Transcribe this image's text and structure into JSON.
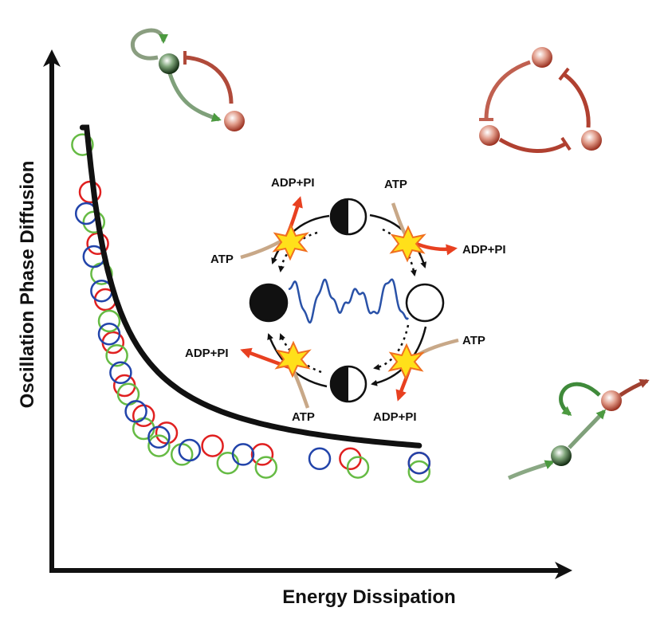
{
  "axes": {
    "x_label": "Energy Dissipation",
    "y_label": "Oscillation Phase Diffusion"
  },
  "cycle": {
    "labels": {
      "adp_top_left": "ADP+PI",
      "atp_top_right": "ATP",
      "atp_left": "ATP",
      "adp_right": "ADP+PI",
      "adp_left": "ADP+PI",
      "atp_lower_right": "ATP",
      "atp_bottom": "ATP",
      "adp_bottom": "ADP+PI"
    }
  },
  "colors": {
    "red": "#e02020",
    "green": "#66bb44",
    "blue": "#2244aa",
    "curve": "#111111",
    "trace": "#2a52a8",
    "star_fill": "#ffe01a",
    "star_stroke": "#f07020",
    "atp_arrow": "#c8a888",
    "adp_arrow": "#e84020"
  },
  "chart_data": {
    "type": "scatter",
    "series": [
      {
        "name": "",
        "color": "red",
        "points": [
          [
            0.1,
            0.85
          ],
          [
            0.12,
            0.73
          ],
          [
            0.14,
            0.6
          ],
          [
            0.16,
            0.5
          ],
          [
            0.19,
            0.4
          ],
          [
            0.24,
            0.33
          ],
          [
            0.3,
            0.29
          ],
          [
            0.42,
            0.26
          ],
          [
            0.55,
            0.24
          ],
          [
            0.78,
            0.23
          ],
          [
            0.96,
            0.22
          ]
        ]
      },
      {
        "name": "",
        "color": "green",
        "points": [
          [
            0.08,
            0.96
          ],
          [
            0.11,
            0.78
          ],
          [
            0.13,
            0.66
          ],
          [
            0.15,
            0.55
          ],
          [
            0.17,
            0.47
          ],
          [
            0.2,
            0.38
          ],
          [
            0.24,
            0.3
          ],
          [
            0.28,
            0.26
          ],
          [
            0.34,
            0.24
          ],
          [
            0.46,
            0.22
          ],
          [
            0.56,
            0.21
          ],
          [
            0.8,
            0.21
          ],
          [
            0.96,
            0.2
          ]
        ]
      },
      {
        "name": "",
        "color": "blue",
        "points": [
          [
            0.09,
            0.8
          ],
          [
            0.11,
            0.7
          ],
          [
            0.13,
            0.62
          ],
          [
            0.15,
            0.52
          ],
          [
            0.18,
            0.43
          ],
          [
            0.22,
            0.34
          ],
          [
            0.28,
            0.28
          ],
          [
            0.36,
            0.25
          ],
          [
            0.5,
            0.24
          ],
          [
            0.7,
            0.23
          ],
          [
            0.96,
            0.22
          ]
        ]
      }
    ],
    "fit_curve": true
  }
}
